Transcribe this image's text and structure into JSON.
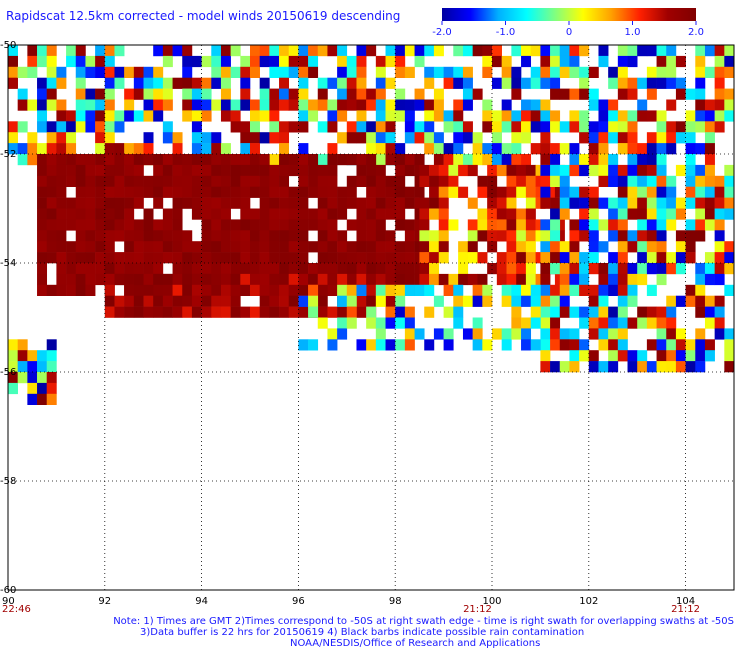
{
  "title": "Rapidscat 12.5km corrected - model winds 20150619 descending",
  "colorbar": {
    "min": -2.0,
    "max": 2.0,
    "tick_labels": [
      "-2.0",
      "-1.0",
      "0",
      "1.0",
      "2.0"
    ],
    "tick_values": [
      -2.0,
      -1.0,
      0,
      1.0,
      2.0
    ],
    "stops": [
      "#0000a0",
      "#0000ff",
      "#00b0ff",
      "#00ffff",
      "#80ff80",
      "#ffff00",
      "#ffa000",
      "#ff2000",
      "#a00000",
      "#800000"
    ]
  },
  "chart_data": {
    "type": "heatmap",
    "title": "Rapidscat 12.5km corrected - model winds 20150619 descending",
    "xlim": [
      90,
      105
    ],
    "ylim": [
      -60,
      -50
    ],
    "x_ticks": [
      "90",
      "92",
      "94",
      "96",
      "98",
      "100",
      "102",
      "104"
    ],
    "y_ticks": [
      "-50",
      "-52",
      "-54",
      "-56",
      "-58",
      "-60"
    ],
    "grid": true,
    "time_labels": [
      {
        "x": 90,
        "label": "22:46"
      },
      {
        "x": 99.7,
        "label": "21:12"
      },
      {
        "x": 104,
        "label": "21:12"
      }
    ],
    "regions": [
      {
        "lon": [
          90.0,
          105.0
        ],
        "lat_top": -50.0,
        "lat_bottom": -52.2,
        "value_range": [
          -2.0,
          2.0
        ],
        "density": 0.7
      },
      {
        "lon": [
          90.6,
          98.5
        ],
        "lat_top": -52.0,
        "lat_bottom": -54.5,
        "value_range": [
          1.6,
          2.0
        ],
        "density": 0.9
      },
      {
        "lon": [
          92.0,
          98.0
        ],
        "lat_top": -54.2,
        "lat_bottom": -54.9,
        "value_range": [
          1.2,
          2.0
        ],
        "density": 0.9
      },
      {
        "lon": [
          98.5,
          101.5
        ],
        "lat_top": -52.2,
        "lat_bottom": -54.4,
        "value_range": [
          0.0,
          2.0
        ],
        "density": 0.8
      },
      {
        "lon": [
          101.0,
          105.0
        ],
        "lat_top": -52.2,
        "lat_bottom": -56.0,
        "value_range": [
          -2.0,
          2.0
        ],
        "density": 0.8
      },
      {
        "lon": [
          96.0,
          101.0
        ],
        "lat_top": -54.4,
        "lat_bottom": -55.6,
        "value_range": [
          -2.0,
          1.0
        ],
        "density": 0.5
      },
      {
        "lon": [
          90.0,
          90.9
        ],
        "lat_top": -55.4,
        "lat_bottom": -56.6,
        "value_range": [
          -2.0,
          2.0
        ],
        "density": 0.7
      }
    ]
  },
  "notes": {
    "line1": "Note: 1) Times are GMT 2)Times correspond to -50S at right swath edge - time is right swath for overlapping swaths at -50S",
    "line2": "3)Data buffer is 22 hrs for 20150619 4) Black barbs indicate possible rain contamination",
    "line3": "NOAA/NESDIS/Office of Research and Applications"
  }
}
